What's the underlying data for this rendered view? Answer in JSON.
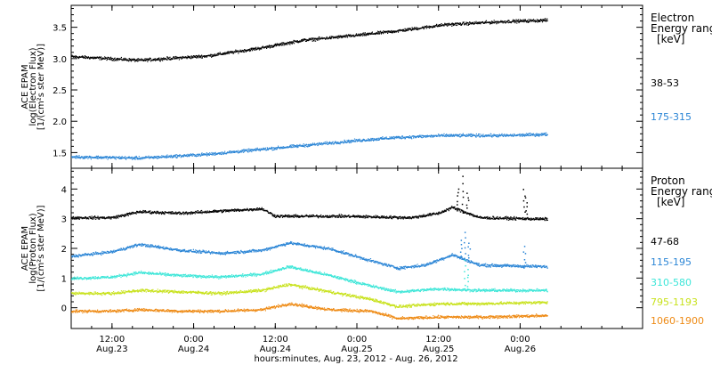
{
  "chart_data": [
    {
      "type": "scatter",
      "panel": "electron",
      "ylabel": [
        "ACE EPAM",
        "log(Electron Flux)",
        "[1/(cm²s ster MeV)]"
      ],
      "ylim": [
        1.25,
        3.85
      ],
      "yticks": [
        "1.5",
        "2.0",
        "2.5",
        "3.0",
        "3.5"
      ],
      "legend_title": [
        "Electron",
        "Energy range",
        "[keV]"
      ],
      "series": [
        {
          "name": "38-53",
          "color": "#000000",
          "keypoints": [
            [
              0,
              3.04
            ],
            [
              10,
              2.98
            ],
            [
              20,
              3.05
            ],
            [
              28,
              3.18
            ],
            [
              34,
              3.3
            ],
            [
              42,
              3.38
            ],
            [
              48,
              3.45
            ],
            [
              55,
              3.55
            ],
            [
              64,
              3.6
            ],
            [
              70,
              3.62
            ]
          ]
        },
        {
          "name": "175-315",
          "color": "#2c86d6",
          "keypoints": [
            [
              0,
              1.44
            ],
            [
              10,
              1.42
            ],
            [
              20,
              1.48
            ],
            [
              28,
              1.56
            ],
            [
              34,
              1.62
            ],
            [
              42,
              1.7
            ],
            [
              48,
              1.75
            ],
            [
              55,
              1.78
            ],
            [
              64,
              1.78
            ],
            [
              70,
              1.8
            ]
          ]
        }
      ]
    },
    {
      "type": "scatter",
      "panel": "proton",
      "ylabel": [
        "ACE EPAM",
        "log(Proton Flux)",
        "[1/(cm²s ster MeV)]"
      ],
      "ylim": [
        -0.7,
        4.7
      ],
      "yticks": [
        "0",
        "1",
        "2",
        "3",
        "4"
      ],
      "legend_title": [
        "Proton",
        "Energy range",
        "[keV]"
      ],
      "series": [
        {
          "name": "47-68",
          "color": "#000000",
          "keypoints": [
            [
              0,
              3.05
            ],
            [
              6,
              3.05
            ],
            [
              10,
              3.25
            ],
            [
              16,
              3.2
            ],
            [
              28,
              3.35
            ],
            [
              30,
              3.1
            ],
            [
              40,
              3.1
            ],
            [
              50,
              3.05
            ],
            [
              54,
              3.2
            ],
            [
              56,
              3.4
            ],
            [
              60,
              3.05
            ],
            [
              70,
              3.0
            ]
          ]
        },
        {
          "name": "115-195",
          "color": "#2c86d6",
          "keypoints": [
            [
              0,
              1.75
            ],
            [
              6,
              1.9
            ],
            [
              10,
              2.15
            ],
            [
              16,
              1.95
            ],
            [
              22,
              1.85
            ],
            [
              28,
              1.95
            ],
            [
              32,
              2.2
            ],
            [
              38,
              2.0
            ],
            [
              44,
              1.6
            ],
            [
              48,
              1.35
            ],
            [
              52,
              1.45
            ],
            [
              56,
              1.8
            ],
            [
              60,
              1.45
            ],
            [
              70,
              1.4
            ]
          ]
        },
        {
          "name": "310-580",
          "color": "#3de6d8",
          "keypoints": [
            [
              0,
              1.0
            ],
            [
              6,
              1.05
            ],
            [
              10,
              1.2
            ],
            [
              16,
              1.1
            ],
            [
              22,
              1.05
            ],
            [
              28,
              1.15
            ],
            [
              32,
              1.4
            ],
            [
              38,
              1.1
            ],
            [
              44,
              0.75
            ],
            [
              48,
              0.55
            ],
            [
              54,
              0.65
            ],
            [
              60,
              0.6
            ],
            [
              70,
              0.6
            ]
          ]
        },
        {
          "name": "795-1193",
          "color": "#c8e21c",
          "keypoints": [
            [
              0,
              0.5
            ],
            [
              6,
              0.5
            ],
            [
              10,
              0.6
            ],
            [
              16,
              0.55
            ],
            [
              22,
              0.5
            ],
            [
              28,
              0.6
            ],
            [
              32,
              0.8
            ],
            [
              38,
              0.55
            ],
            [
              44,
              0.3
            ],
            [
              48,
              0.05
            ],
            [
              54,
              0.15
            ],
            [
              60,
              0.15
            ],
            [
              70,
              0.2
            ]
          ]
        },
        {
          "name": "1060-1900",
          "color": "#ee8a14",
          "keypoints": [
            [
              0,
              -0.1
            ],
            [
              6,
              -0.1
            ],
            [
              10,
              -0.05
            ],
            [
              16,
              -0.1
            ],
            [
              22,
              -0.1
            ],
            [
              28,
              -0.05
            ],
            [
              32,
              0.15
            ],
            [
              38,
              -0.05
            ],
            [
              44,
              -0.1
            ],
            [
              48,
              -0.35
            ],
            [
              54,
              -0.3
            ],
            [
              60,
              -0.3
            ],
            [
              70,
              -0.25
            ]
          ]
        }
      ],
      "spikes": [
        {
          "series": 0,
          "x": 57.5,
          "y": 4.4
        },
        {
          "series": 0,
          "x": 56.8,
          "y": 4.0
        },
        {
          "series": 0,
          "x": 58.2,
          "y": 3.9
        },
        {
          "series": 0,
          "x": 66.5,
          "y": 4.0
        },
        {
          "series": 0,
          "x": 66.8,
          "y": 3.7
        },
        {
          "series": 1,
          "x": 57.8,
          "y": 2.6
        },
        {
          "series": 1,
          "x": 57.3,
          "y": 2.3
        },
        {
          "series": 1,
          "x": 58.4,
          "y": 2.2
        },
        {
          "series": 1,
          "x": 66.6,
          "y": 2.05
        },
        {
          "series": 2,
          "x": 57.8,
          "y": 1.6
        },
        {
          "series": 2,
          "x": 58.2,
          "y": 1.3
        }
      ]
    }
  ],
  "x_axis": {
    "xlim": [
      0,
      84
    ],
    "ticks": [
      {
        "x": 6,
        "label": "12:00",
        "sublabel": "Aug.23"
      },
      {
        "x": 18,
        "label": "0:00",
        "sublabel": "Aug.24"
      },
      {
        "x": 30,
        "label": "12:00",
        "sublabel": "Aug.24"
      },
      {
        "x": 42,
        "label": "0:00",
        "sublabel": "Aug.25"
      },
      {
        "x": 54,
        "label": "12:00",
        "sublabel": "Aug.25"
      },
      {
        "x": 66,
        "label": "0:00",
        "sublabel": "Aug.26"
      }
    ],
    "xlabel": "hours:minutes, Aug. 23, 2012 - Aug. 26, 2012"
  }
}
